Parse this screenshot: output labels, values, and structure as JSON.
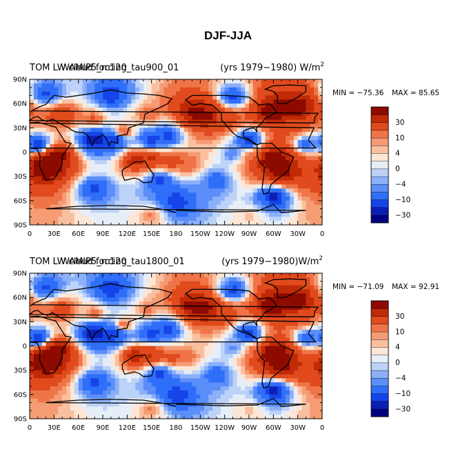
{
  "page": {
    "title": "DJF-JJA"
  },
  "colorbar": {
    "colors": [
      "#00007f",
      "#0a1fb4",
      "#1545e8",
      "#2f6ef8",
      "#5b8ef8",
      "#8cb0f8",
      "#bcd2f8",
      "#e6eef8",
      "#fde6d6",
      "#f9c0a0",
      "#f59c74",
      "#ef7548",
      "#e04a1c",
      "#c02a06",
      "#8c0a00"
    ],
    "labels": [
      "-30",
      "-10",
      "-4",
      "0",
      "4",
      "10",
      "30"
    ],
    "label_slots": [
      1,
      3,
      5,
      7,
      9,
      11,
      13
    ]
  },
  "chart_data": [
    {
      "type": "heatmap",
      "title_left": "TOM LW cloud forcing",
      "title_overlay": "WAMIP5_rc120_tau900_01",
      "title_right_text": "(yrs 1979−1980) W/m",
      "title_right_sup": "2",
      "min_label": "MIN = −75.36",
      "max_label": "MAX =  85.65",
      "x_ticks": [
        "0",
        "30E",
        "60E",
        "90E",
        "120E",
        "150E",
        "180",
        "150W",
        "120W",
        "90W",
        "60W",
        "30W",
        "0"
      ],
      "y_ticks": [
        "90N",
        "60N",
        "30N",
        "0",
        "30S",
        "60S",
        "90S"
      ],
      "xlim": [
        0,
        360
      ],
      "ylim": [
        -90,
        90
      ],
      "units": "W/m2",
      "features": [
        {
          "lon": 35,
          "lat": -5,
          "value": 45
        },
        {
          "lon": 20,
          "lat": -18,
          "value": 70
        },
        {
          "lon": 130,
          "lat": -10,
          "value": 35
        },
        {
          "lon": 150,
          "lat": -8,
          "value": 30
        },
        {
          "lon": 175,
          "lat": -12,
          "value": 20
        },
        {
          "lon": 195,
          "lat": -15,
          "value": 12
        },
        {
          "lon": 300,
          "lat": -10,
          "value": 75
        },
        {
          "lon": 310,
          "lat": -25,
          "value": 40
        },
        {
          "lon": 275,
          "lat": -5,
          "value": 10
        },
        {
          "lon": 250,
          "lat": -3,
          "value": -12
        },
        {
          "lon": 40,
          "lat": 45,
          "value": 25
        },
        {
          "lon": 80,
          "lat": 40,
          "value": 15
        },
        {
          "lon": 115,
          "lat": 25,
          "value": 20
        },
        {
          "lon": 145,
          "lat": 45,
          "value": 12
        },
        {
          "lon": 200,
          "lat": 50,
          "value": 40
        },
        {
          "lon": 215,
          "lat": 45,
          "value": 45
        },
        {
          "lon": 240,
          "lat": 40,
          "value": 20
        },
        {
          "lon": 300,
          "lat": 50,
          "value": 55
        },
        {
          "lon": 330,
          "lat": 55,
          "value": 50
        },
        {
          "lon": 330,
          "lat": 35,
          "value": 15
        },
        {
          "lon": 80,
          "lat": 15,
          "value": -55
        },
        {
          "lon": 105,
          "lat": 15,
          "value": -40
        },
        {
          "lon": 150,
          "lat": 15,
          "value": -35
        },
        {
          "lon": 170,
          "lat": 20,
          "value": -30
        },
        {
          "lon": 270,
          "lat": 15,
          "value": -40
        },
        {
          "lon": 340,
          "lat": 10,
          "value": -20
        },
        {
          "lon": 10,
          "lat": 10,
          "value": -35
        },
        {
          "lon": 80,
          "lat": -45,
          "value": -25
        },
        {
          "lon": 160,
          "lat": -35,
          "value": -30
        },
        {
          "lon": 230,
          "lat": -35,
          "value": -20
        },
        {
          "lon": 300,
          "lat": -55,
          "value": -40
        },
        {
          "lon": 180,
          "lat": -60,
          "value": -35
        },
        {
          "lon": 100,
          "lat": 70,
          "value": -35
        },
        {
          "lon": 20,
          "lat": 72,
          "value": -25
        },
        {
          "lon": 250,
          "lat": 68,
          "value": -30
        },
        {
          "lon": 0,
          "lat": -80,
          "value": 5
        },
        {
          "lon": 150,
          "lat": -78,
          "value": 8
        },
        {
          "lon": 270,
          "lat": -80,
          "value": 3
        }
      ]
    },
    {
      "type": "heatmap",
      "title_left": "TOM LW cloud forcing",
      "title_overlay": "WAMIP5_rc120_tau1800_01",
      "title_right_text": "(yrs 1979−1980)W/m",
      "title_right_sup": "2",
      "min_label": "MIN = −71.09",
      "max_label": "MAX =  92.91",
      "x_ticks": [
        "0",
        "30E",
        "60E",
        "90E",
        "120E",
        "150E",
        "180",
        "150W",
        "120W",
        "90W",
        "60W",
        "30W",
        "0"
      ],
      "y_ticks": [
        "90N",
        "60N",
        "30N",
        "0",
        "30S",
        "60S",
        "90S"
      ],
      "xlim": [
        0,
        360
      ],
      "ylim": [
        -90,
        90
      ],
      "units": "W/m2",
      "features": [
        {
          "lon": 35,
          "lat": -5,
          "value": 45
        },
        {
          "lon": 20,
          "lat": -18,
          "value": 72
        },
        {
          "lon": 130,
          "lat": -12,
          "value": 35
        },
        {
          "lon": 150,
          "lat": -10,
          "value": 28
        },
        {
          "lon": 175,
          "lat": -14,
          "value": 18
        },
        {
          "lon": 195,
          "lat": -15,
          "value": 10
        },
        {
          "lon": 300,
          "lat": -10,
          "value": 78
        },
        {
          "lon": 310,
          "lat": -25,
          "value": 40
        },
        {
          "lon": 275,
          "lat": -5,
          "value": 8
        },
        {
          "lon": 250,
          "lat": -3,
          "value": -10
        },
        {
          "lon": 40,
          "lat": 45,
          "value": 20
        },
        {
          "lon": 80,
          "lat": 40,
          "value": 12
        },
        {
          "lon": 115,
          "lat": 25,
          "value": 18
        },
        {
          "lon": 145,
          "lat": 45,
          "value": 10
        },
        {
          "lon": 200,
          "lat": 50,
          "value": 42
        },
        {
          "lon": 215,
          "lat": 45,
          "value": 45
        },
        {
          "lon": 240,
          "lat": 40,
          "value": 18
        },
        {
          "lon": 300,
          "lat": 50,
          "value": 55
        },
        {
          "lon": 330,
          "lat": 55,
          "value": 50
        },
        {
          "lon": 330,
          "lat": 35,
          "value": 12
        },
        {
          "lon": 80,
          "lat": 15,
          "value": -55
        },
        {
          "lon": 105,
          "lat": 15,
          "value": -42
        },
        {
          "lon": 150,
          "lat": 15,
          "value": -35
        },
        {
          "lon": 170,
          "lat": 20,
          "value": -30
        },
        {
          "lon": 270,
          "lat": 15,
          "value": -42
        },
        {
          "lon": 340,
          "lat": 10,
          "value": -22
        },
        {
          "lon": 10,
          "lat": 10,
          "value": -35
        },
        {
          "lon": 80,
          "lat": -45,
          "value": -25
        },
        {
          "lon": 160,
          "lat": -35,
          "value": -30
        },
        {
          "lon": 230,
          "lat": -35,
          "value": -20
        },
        {
          "lon": 300,
          "lat": -55,
          "value": -40
        },
        {
          "lon": 180,
          "lat": -60,
          "value": -35
        },
        {
          "lon": 100,
          "lat": 70,
          "value": -35
        },
        {
          "lon": 20,
          "lat": 72,
          "value": -25
        },
        {
          "lon": 250,
          "lat": 68,
          "value": -30
        },
        {
          "lon": 0,
          "lat": -80,
          "value": 5
        },
        {
          "lon": 150,
          "lat": -78,
          "value": 8
        },
        {
          "lon": 270,
          "lat": -80,
          "value": 3
        }
      ]
    }
  ]
}
